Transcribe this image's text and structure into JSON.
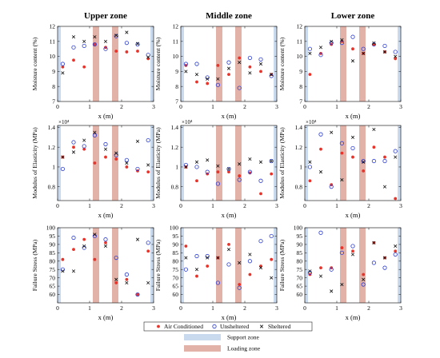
{
  "colors": {
    "support_zone": "#c9d9ee",
    "loading_zone": "#e2b1a8",
    "air_conditioned": "#e8332a",
    "unsheltered": "#2a3bd1",
    "sheltered": "#111111"
  },
  "columns": [
    "Upper zone",
    "Middle zone",
    "Lower zone"
  ],
  "xlabel": "x (m)",
  "rows": [
    {
      "key": "mc",
      "ylabel": "Moisture content (%)",
      "ylim": [
        7,
        12
      ],
      "yticks": [
        7,
        8,
        9,
        10,
        11,
        12
      ],
      "exponent": ""
    },
    {
      "key": "moe",
      "ylabel": "Modulus of Elasticity (MPa)",
      "ylim": [
        0.66,
        1.42
      ],
      "yticks": [
        0.8,
        1.0,
        1.2,
        1.4
      ],
      "exponent": "×10⁴"
    },
    {
      "key": "fs",
      "ylabel": "Failure Stress (MPa)",
      "ylim": [
        55,
        100
      ],
      "yticks": [
        60,
        65,
        70,
        75,
        80,
        85,
        90,
        95,
        100
      ],
      "exponent": ""
    }
  ],
  "x_axis": {
    "xlim": [
      0,
      3
    ],
    "xticks": [
      0,
      1,
      2,
      3
    ]
  },
  "zones": {
    "support": [
      [
        0,
        0.1
      ],
      [
        2.9,
        3.0
      ]
    ],
    "loading": [
      [
        1.1,
        1.3
      ],
      [
        1.7,
        1.9
      ]
    ]
  },
  "legend": {
    "series": [
      "Air Conditioned",
      "Unsheltered",
      "Sheltered"
    ],
    "zones": [
      "Support zone",
      "Loading zone"
    ]
  },
  "chart_data": [
    {
      "type": "scatter",
      "row": "Moisture content",
      "column": "Upper zone",
      "x": [
        0.16,
        0.5,
        0.83,
        1.16,
        1.5,
        1.83,
        2.16,
        2.5,
        2.83
      ],
      "series": [
        {
          "name": "Air Conditioned",
          "values": [
            9.3,
            9.75,
            9.3,
            10.8,
            10.6,
            10.35,
            10.3,
            10.35,
            9.85
          ]
        },
        {
          "name": "Unsheltered",
          "values": [
            9.5,
            10.6,
            10.7,
            10.8,
            10.5,
            11.35,
            10.9,
            10.8,
            10.1
          ]
        },
        {
          "name": "Sheltered",
          "values": [
            8.9,
            11.3,
            11.0,
            11.3,
            11.0,
            11.4,
            11.6,
            10.85,
            9.95
          ]
        }
      ]
    },
    {
      "type": "scatter",
      "row": "Moisture content",
      "column": "Middle zone",
      "x": [
        0.16,
        0.5,
        0.83,
        1.16,
        1.5,
        1.83,
        2.16,
        2.5,
        2.83
      ],
      "series": [
        {
          "name": "Air Conditioned",
          "values": [
            9.4,
            8.3,
            8.2,
            9.4,
            8.8,
            9.9,
            9.3,
            9.0,
            8.8
          ]
        },
        {
          "name": "Unsheltered",
          "values": [
            9.5,
            9.5,
            8.6,
            8.1,
            9.6,
            7.9,
            9.9,
            9.8,
            8.7
          ]
        },
        {
          "name": "Sheltered",
          "values": [
            9.0,
            8.8,
            8.5,
            8.5,
            9.2,
            9.6,
            8.9,
            9.5,
            8.8
          ]
        }
      ]
    },
    {
      "type": "scatter",
      "row": "Moisture content",
      "column": "Lower zone",
      "x": [
        0.16,
        0.5,
        0.83,
        1.16,
        1.5,
        1.83,
        2.16,
        2.5,
        2.83
      ],
      "series": [
        {
          "name": "Air Conditioned",
          "values": [
            8.8,
            10.2,
            10.8,
            11.0,
            10.5,
            10.2,
            10.8,
            10.3,
            9.85
          ]
        },
        {
          "name": "Unsheltered",
          "values": [
            10.5,
            10.1,
            10.9,
            10.9,
            11.3,
            10.5,
            10.8,
            10.7,
            10.3
          ]
        },
        {
          "name": "Sheltered",
          "values": [
            10.2,
            10.6,
            11.0,
            11.1,
            9.7,
            10.2,
            10.9,
            10.3,
            10.0
          ]
        }
      ]
    },
    {
      "type": "scatter",
      "row": "Modulus of Elasticity",
      "column": "Upper zone",
      "x": [
        0.16,
        0.5,
        0.83,
        1.16,
        1.5,
        1.83,
        2.16,
        2.5,
        2.83
      ],
      "series": [
        {
          "name": "Air Conditioned",
          "values": [
            1.1,
            1.2,
            1.18,
            1.04,
            1.1,
            1.08,
            1.0,
            0.96,
            0.95
          ]
        },
        {
          "name": "Unsheltered",
          "values": [
            0.98,
            1.25,
            1.21,
            1.32,
            1.23,
            1.12,
            1.07,
            0.98,
            1.27
          ]
        },
        {
          "name": "Sheltered",
          "values": [
            1.1,
            1.15,
            1.27,
            1.35,
            1.18,
            1.14,
            1.04,
            1.26,
            1.02
          ]
        }
      ]
    },
    {
      "type": "scatter",
      "row": "Modulus of Elasticity",
      "column": "Middle zone",
      "x": [
        0.16,
        0.5,
        0.83,
        1.16,
        1.5,
        1.83,
        2.16,
        2.5,
        2.83
      ],
      "series": [
        {
          "name": "Air Conditioned",
          "values": [
            1.0,
            0.86,
            0.93,
            0.95,
            0.95,
            0.91,
            0.94,
            0.73,
            0.93
          ]
        },
        {
          "name": "Unsheltered",
          "values": [
            1.02,
            1.0,
            0.95,
            0.83,
            0.98,
            0.87,
            0.95,
            0.86,
            1.06
          ]
        },
        {
          "name": "Sheltered",
          "values": [
            1.0,
            1.05,
            1.07,
            1.01,
            0.98,
            1.03,
            1.08,
            1.05,
            1.06
          ]
        }
      ]
    },
    {
      "type": "scatter",
      "row": "Modulus of Elasticity",
      "column": "Lower zone",
      "x": [
        0.16,
        0.5,
        0.83,
        1.16,
        1.5,
        1.83,
        2.16,
        2.5,
        2.83
      ],
      "series": [
        {
          "name": "Air Conditioned",
          "values": [
            0.86,
            1.18,
            0.82,
            1.14,
            1.1,
            0.96,
            1.2,
            1.1,
            0.68
          ]
        },
        {
          "name": "Unsheltered",
          "values": [
            1.0,
            1.33,
            0.8,
            1.24,
            1.19,
            1.06,
            1.06,
            1.06,
            1.16
          ]
        },
        {
          "name": "Sheltered",
          "values": [
            1.05,
            0.95,
            1.35,
            0.87,
            1.3,
            1.05,
            1.38,
            0.8,
            1.1
          ]
        }
      ]
    },
    {
      "type": "scatter",
      "row": "Failure Stress",
      "column": "Upper zone",
      "x": [
        0.16,
        0.5,
        0.83,
        1.16,
        1.5,
        1.83,
        2.16,
        2.5,
        2.83
      ],
      "series": [
        {
          "name": "Air Conditioned",
          "values": [
            81,
            87,
            93,
            81,
            91,
            67,
            69,
            60,
            86
          ]
        },
        {
          "name": "Unsheltered",
          "values": [
            75,
            94,
            88,
            95,
            93,
            82,
            72,
            60,
            91
          ]
        },
        {
          "name": "Sheltered",
          "values": [
            74,
            74,
            89,
            96,
            89,
            69,
            67,
            93,
            67
          ]
        }
      ]
    },
    {
      "type": "scatter",
      "row": "Failure Stress",
      "column": "Middle zone",
      "x": [
        0.16,
        0.5,
        0.83,
        1.16,
        1.5,
        1.83,
        2.16,
        2.5,
        2.83
      ],
      "series": [
        {
          "name": "Air Conditioned",
          "values": [
            89,
            71,
            77,
            82,
            90,
            66,
            72,
            77,
            81
          ]
        },
        {
          "name": "Unsheltered",
          "values": [
            75,
            83,
            83,
            67,
            78,
            64,
            80,
            92,
            95
          ]
        },
        {
          "name": "Sheltered",
          "values": [
            82,
            75,
            82,
            82,
            87,
            79,
            84,
            76,
            70
          ]
        }
      ]
    },
    {
      "type": "scatter",
      "row": "Failure Stress",
      "column": "Lower zone",
      "x": [
        0.16,
        0.5,
        0.83,
        1.16,
        1.5,
        1.83,
        2.16,
        2.5,
        2.83
      ],
      "series": [
        {
          "name": "Air Conditioned",
          "values": [
            72,
            76,
            76,
            88,
            86,
            72,
            91,
            82,
            86
          ]
        },
        {
          "name": "Unsheltered",
          "values": [
            73,
            97,
            75,
            85,
            89,
            66,
            79,
            76,
            84
          ]
        },
        {
          "name": "Sheltered",
          "values": [
            74,
            71,
            62,
            66,
            84,
            69,
            91,
            82,
            89
          ]
        }
      ]
    }
  ]
}
